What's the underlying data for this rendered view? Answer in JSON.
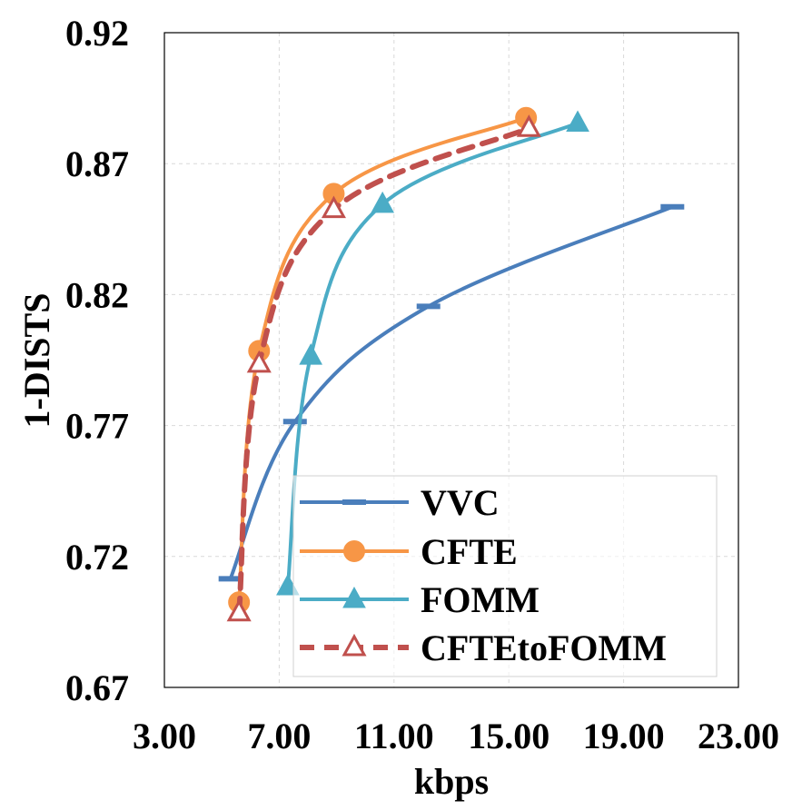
{
  "chart_data": {
    "type": "line",
    "title": "",
    "xlabel": "kbps",
    "ylabel": "1-DISTS",
    "xlim": [
      3,
      23
    ],
    "ylim": [
      0.67,
      0.92
    ],
    "xticks": [
      "3.00",
      "7.00",
      "11.00",
      "15.00",
      "19.00",
      "23.00"
    ],
    "yticks": [
      "0.67",
      "0.72",
      "0.77",
      "0.82",
      "0.87",
      "0.92"
    ],
    "grid": true,
    "legend_position": "bottom-right",
    "series": [
      {
        "name": "VVC",
        "color": "#4a7ebb",
        "marker": "dash",
        "dashed": false,
        "x": [
          5.3,
          7.55,
          12.2,
          20.7
        ],
        "y": [
          0.7115,
          0.7715,
          0.8155,
          0.8535
        ]
      },
      {
        "name": "CFTE",
        "color": "#f79646",
        "marker": "circle",
        "dashed": false,
        "x": [
          5.6,
          6.3,
          8.9,
          15.6
        ],
        "y": [
          0.7025,
          0.7985,
          0.8585,
          0.8875
        ]
      },
      {
        "name": "FOMM",
        "color": "#4bacc6",
        "marker": "triangle",
        "dashed": false,
        "x": [
          7.3,
          8.1,
          10.6,
          17.4
        ],
        "y": [
          0.7085,
          0.7965,
          0.8545,
          0.8855
        ]
      },
      {
        "name": "CFTEtoFOMM",
        "color": "#c0504d",
        "marker": "triangle-open",
        "dashed": true,
        "x": [
          5.6,
          6.3,
          8.9,
          15.7
        ],
        "y": [
          0.6985,
          0.7935,
          0.8525,
          0.8835
        ]
      }
    ]
  }
}
